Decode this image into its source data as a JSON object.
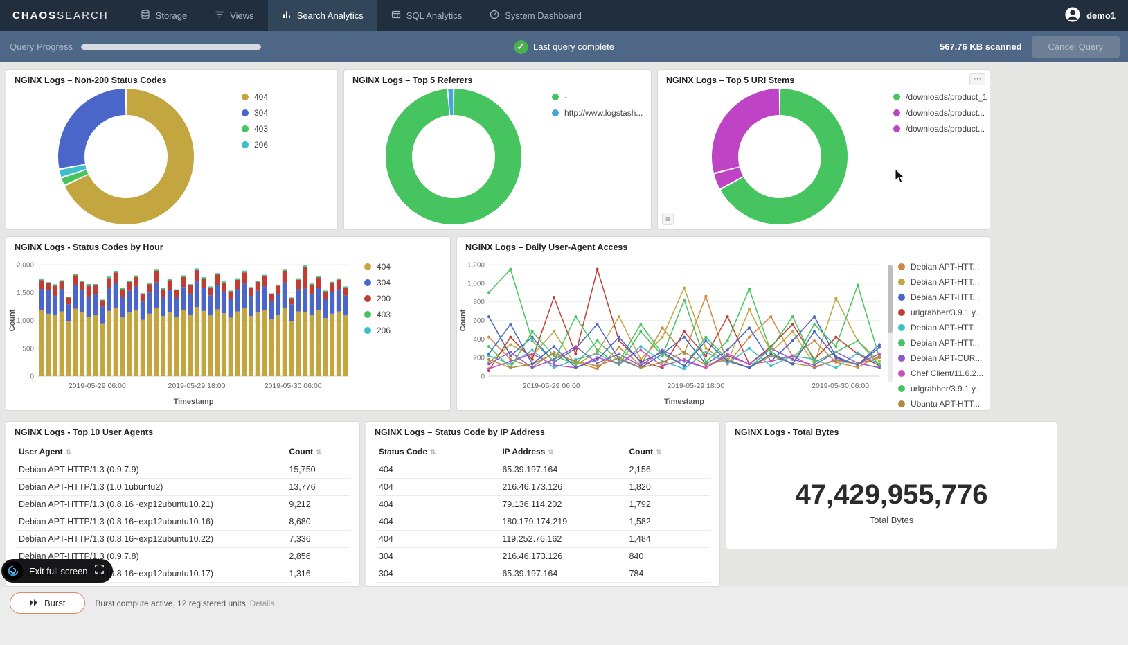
{
  "nav": {
    "logo_chaos": "CHAOS",
    "logo_search": "SEARCH",
    "items": [
      {
        "label": "Storage"
      },
      {
        "label": "Views"
      },
      {
        "label": "Search Analytics"
      },
      {
        "label": "SQL Analytics"
      },
      {
        "label": "System Dashboard"
      }
    ],
    "user": "demo1"
  },
  "query_bar": {
    "label": "Query Progress",
    "progress_percent": 100,
    "status": "Last query complete",
    "scanned": "567.76 KB scanned",
    "cancel_label": "Cancel Query"
  },
  "panels": {
    "non200": {
      "title": "NGINX Logs – Non-200 Status Codes",
      "chart": {
        "type": "pie",
        "slices": [
          {
            "label": "404",
            "value": 68,
            "color": "#c3a63f"
          },
          {
            "label": "403",
            "value": 2,
            "color": "#45c45f"
          },
          {
            "label": "206",
            "value": 2,
            "color": "#3dbec8"
          },
          {
            "label": "304",
            "value": 28,
            "color": "#4966c8"
          }
        ],
        "legend": [
          {
            "label": "404",
            "color": "#c3a63f"
          },
          {
            "label": "304",
            "color": "#4966c8"
          },
          {
            "label": "403",
            "color": "#45c45f"
          },
          {
            "label": "206",
            "color": "#3dbec8"
          }
        ]
      }
    },
    "referers": {
      "title": "NGINX Logs – Top 5 Referers",
      "chart": {
        "type": "pie",
        "slices": [
          {
            "label": "-",
            "value": 98.6,
            "color": "#45c45f"
          },
          {
            "label": "http://www.logstash...",
            "value": 1.4,
            "color": "#46a5d8"
          }
        ],
        "legend": [
          {
            "label": "-",
            "color": "#45c45f"
          },
          {
            "label": "http://www.logstash...",
            "color": "#46a5d8"
          }
        ]
      }
    },
    "uri_stems": {
      "title": "NGINX Logs – Top 5 URI Stems",
      "chart": {
        "type": "pie",
        "slices": [
          {
            "label": "/downloads/product_1",
            "value": 67,
            "color": "#45c45f"
          },
          {
            "label": "/downloads/product...",
            "value": 4,
            "color": "#bf44c5"
          },
          {
            "label": "/downloads/product...",
            "value": 29,
            "color": "#bf44c5"
          }
        ],
        "legend": [
          {
            "label": "/downloads/product_1",
            "color": "#45c45f"
          },
          {
            "label": "/downloads/product...",
            "color": "#bf44c5"
          },
          {
            "label": "/downloads/product...",
            "color": "#bf44c5"
          }
        ]
      }
    },
    "status_by_hour": {
      "title": "NGINX Logs - Status Codes by Hour",
      "chart": {
        "type": "bar",
        "stacked": true,
        "ylabel": "Count",
        "xlabel": "Timestamp",
        "ylim": [
          0,
          2000
        ],
        "yticks": [
          {
            "v": 0,
            "label": "0"
          },
          {
            "v": 500,
            "label": "500"
          },
          {
            "v": 1000,
            "label": "1,000"
          },
          {
            "v": 1500,
            "label": "1,500"
          },
          {
            "v": 2000,
            "label": "2,000"
          }
        ],
        "xticks": [
          {
            "pos": 0.19,
            "label": "2019-05-29 06:00"
          },
          {
            "pos": 0.51,
            "label": "2019-05-29 18:00"
          },
          {
            "pos": 0.82,
            "label": "2019-05-30 06:00"
          }
        ],
        "series": [
          {
            "name": "404",
            "color": "#c3a63f",
            "values": [
              1180,
              1120,
              1090,
              1160,
              980,
              1210,
              1150,
              1060,
              1100,
              950,
              1170,
              1230,
              1060,
              1140,
              1190,
              1010,
              1120,
              1230,
              1080,
              1150,
              1060,
              1180,
              1100,
              1240,
              1170,
              1090,
              1200,
              1130,
              1050,
              1160,
              1220,
              1080,
              1140,
              1190,
              1020,
              1100,
              1230,
              980,
              1160,
              1150,
              1100,
              1180,
              1040,
              1120,
              1160,
              1090
            ]
          },
          {
            "name": "304",
            "color": "#4966c8",
            "values": [
              380,
              420,
              350,
              400,
              310,
              430,
              390,
              360,
              370,
              300,
              410,
              440,
              360,
              390,
              420,
              330,
              380,
              450,
              340,
              400,
              350,
              420,
              380,
              460,
              410,
              360,
              430,
              390,
              340,
              400,
              440,
              360,
              390,
              420,
              330,
              370,
              450,
              310,
              400,
              420,
              380,
              410,
              350,
              390,
              400,
              360
            ]
          },
          {
            "name": "200",
            "color": "#bf3e33",
            "values": [
              160,
              130,
              180,
              140,
              120,
              170,
              150,
              200,
              160,
              110,
              180,
              190,
              140,
              160,
              170,
              130,
              150,
              210,
              140,
              170,
              130,
              180,
              150,
              200,
              170,
              140,
              190,
              160,
              130,
              170,
              200,
              140,
              160,
              180,
              120,
              150,
              210,
              110,
              170,
              380,
              160,
              180,
              130,
              160,
              170,
              140
            ]
          },
          {
            "name": "403",
            "color": "#45c45f",
            "values": [
              14,
              10,
              16,
              12,
              8,
              15,
              12,
              18,
              13,
              8,
              15,
              17,
              11,
              13,
              15,
              10,
              12,
              18,
              11,
              15,
              10,
              16,
              12,
              18,
              15,
              11,
              16,
              13,
              10,
              15,
              18,
              11,
              13,
              16,
              9,
              13,
              18,
              8,
              15,
              20,
              13,
              15,
              10,
              13,
              15,
              11
            ]
          },
          {
            "name": "206",
            "color": "#3dbec8",
            "values": [
              10,
              8,
              12,
              9,
              6,
              11,
              9,
              14,
              10,
              6,
              12,
              13,
              8,
              10,
              11,
              7,
              9,
              14,
              8,
              11,
              7,
              12,
              9,
              14,
              11,
              8,
              12,
              10,
              7,
              11,
              14,
              8,
              10,
              12,
              6,
              9,
              14,
              6,
              11,
              16,
              9,
              11,
              7,
              10,
              11,
              8
            ]
          }
        ],
        "legend": [
          {
            "label": "404",
            "color": "#c3a63f"
          },
          {
            "label": "304",
            "color": "#4966c8"
          },
          {
            "label": "200",
            "color": "#bf3e33"
          },
          {
            "label": "403",
            "color": "#45c45f"
          },
          {
            "label": "206",
            "color": "#3dbec8"
          }
        ]
      }
    },
    "user_agent_access": {
      "title": "NGINX Logs – Daily User-Agent Access",
      "chart": {
        "type": "line",
        "ylabel": "Count",
        "xlabel": "Timestamp",
        "ylim": [
          0,
          1200
        ],
        "yticks": [
          {
            "v": 0,
            "label": "0"
          },
          {
            "v": 200,
            "label": "200"
          },
          {
            "v": 400,
            "label": "400"
          },
          {
            "v": 600,
            "label": "600"
          },
          {
            "v": 800,
            "label": "800"
          },
          {
            "v": 1000,
            "label": "1,000"
          },
          {
            "v": 1200,
            "label": "1,200"
          }
        ],
        "xticks": [
          {
            "pos": 0.16,
            "label": "2019-05-29 06:00"
          },
          {
            "pos": 0.53,
            "label": "2019-05-29 18:00"
          },
          {
            "pos": 0.9,
            "label": "2019-05-30 06:00"
          }
        ],
        "series": [
          {
            "name": "Debian APT-HTT...",
            "color": "#d2863f",
            "values": [
              420,
              180,
              95,
              260,
              150,
              80,
              310,
              120,
              520,
              240,
              860,
              130,
              420,
              640,
              210,
              380,
              150,
              95,
              220
            ]
          },
          {
            "name": "Debian APT-HTT...",
            "color": "#c3a63f",
            "values": [
              150,
              340,
              220,
              480,
              120,
              260,
              640,
              180,
              420,
              950,
              300,
              150,
              720,
              260,
              480,
              130,
              840,
              380,
              160
            ]
          },
          {
            "name": "Debian APT-HTT...",
            "color": "#4966c8",
            "values": [
              640,
              220,
              420,
              150,
              300,
              560,
              180,
              90,
              240,
              420,
              130,
              280,
              520,
              160,
              380,
              640,
              210,
              120,
              340
            ]
          },
          {
            "name": "urlgrabber/3.9.1 y...",
            "color": "#bf3e33",
            "values": [
              60,
              420,
              180,
              850,
              240,
              1150,
              380,
              160,
              90,
              480,
              220,
              640,
              130,
              320,
              560,
              180,
              420,
              240,
              110
            ]
          },
          {
            "name": "Debian APT-HTT...",
            "color": "#3dbec8",
            "values": [
              220,
              130,
              280,
              90,
              180,
              240,
              120,
              320,
              160,
              80,
              260,
              140,
              300,
              110,
              220,
              180,
              90,
              250,
              130
            ]
          },
          {
            "name": "Debian APT-HTT...",
            "color": "#45c45f",
            "values": [
              900,
              1150,
              380,
              160,
              640,
              280,
              120,
              480,
              220,
              820,
              150,
              380,
              940,
              260,
              130,
              560,
              320,
              980,
              200
            ]
          },
          {
            "name": "Debian APT-CUR...",
            "color": "#9258c8",
            "values": [
              130,
              260,
              90,
              180,
              320,
              140,
              240,
              110,
              280,
              160,
              90,
              220,
              130,
              300,
              180,
              120,
              260,
              140,
              90
            ]
          },
          {
            "name": "Chef Client/11.6.2...",
            "color": "#cc4fc0",
            "values": [
              80,
              160,
              240,
              120,
              90,
              200,
              140,
              280,
              110,
              180,
              90,
              240,
              130,
              160,
              220,
              90,
              180,
              130,
              240
            ]
          },
          {
            "name": "urlgrabber/3.9.1 y...",
            "color": "#45c45f",
            "values": [
              320,
              90,
              480,
              220,
              130,
              380,
              160,
              560,
              240,
              110,
              420,
              180,
              90,
              300,
              640,
              150,
              260,
              380,
              120
            ]
          },
          {
            "name": "Ubuntu APT-HTT...",
            "color": "#b08c3e",
            "values": [
              180,
              90,
              130,
              240,
              160,
              110,
              200,
              90,
              150,
              260,
              120,
              180,
              90,
              220,
              140,
              100,
              170,
              130,
              200
            ]
          },
          {
            "name": "Debian APT-HTT...",
            "color": "#4966c8",
            "values": [
              240,
              560,
              130,
              320,
              90,
              180,
              420,
              150,
              260,
              110,
              380,
              160,
              90,
              240,
              130,
              480,
              200,
              120,
              310
            ]
          }
        ],
        "legend": [
          {
            "label": "Debian APT-HTT...",
            "color": "#d2863f"
          },
          {
            "label": "Debian APT-HTT...",
            "color": "#c3a63f"
          },
          {
            "label": "Debian APT-HTT...",
            "color": "#4966c8"
          },
          {
            "label": "urlgrabber/3.9.1 y...",
            "color": "#bf3e33"
          },
          {
            "label": "Debian APT-HTT...",
            "color": "#3dbec8"
          },
          {
            "label": "Debian APT-HTT...",
            "color": "#45c45f"
          },
          {
            "label": "Debian APT-CUR...",
            "color": "#9258c8"
          },
          {
            "label": "Chef Client/11.6.2...",
            "color": "#cc4fc0"
          },
          {
            "label": "urlgrabber/3.9.1 y...",
            "color": "#45c45f"
          },
          {
            "label": "Ubuntu APT-HTT...",
            "color": "#b08c3e"
          },
          {
            "label": "Debian APT-HTT...",
            "color": "#4966c8"
          }
        ]
      }
    },
    "top_user_agents": {
      "title": "NGINX Logs - Top 10 User Agents",
      "table": {
        "columns": [
          "User Agent",
          "Count"
        ],
        "rows": [
          [
            "Debian APT-HTTP/1.3 (0.9.7.9)",
            "15,750"
          ],
          [
            "Debian APT-HTTP/1.3 (1.0.1ubuntu2)",
            "13,776"
          ],
          [
            "Debian APT-HTTP/1.3 (0.8.16~exp12ubuntu10.21)",
            "9,212"
          ],
          [
            "Debian APT-HTTP/1.3 (0.8.16~exp12ubuntu10.16)",
            "8,680"
          ],
          [
            "Debian APT-HTTP/1.3 (0.8.16~exp12ubuntu10.22)",
            "7,336"
          ],
          [
            "Debian APT-HTTP/1.3 (0.9.7.8)",
            "2,856"
          ],
          [
            "Debian APT-HTTP/1.3 (0.8.16~exp12ubuntu10.17)",
            "1,316"
          ]
        ]
      }
    },
    "status_by_ip": {
      "title": "NGINX Logs – Status Code by IP Address",
      "table": {
        "columns": [
          "Status Code",
          "IP Address",
          "Count"
        ],
        "rows": [
          [
            "404",
            "65.39.197.164",
            "2,156"
          ],
          [
            "404",
            "216.46.173.126",
            "1,820"
          ],
          [
            "404",
            "79.136.114.202",
            "1,792"
          ],
          [
            "404",
            "180.179.174.219",
            "1,582"
          ],
          [
            "404",
            "119.252.76.162",
            "1,484"
          ],
          [
            "304",
            "216.46.173.126",
            "840"
          ],
          [
            "304",
            "65.39.197.164",
            "784"
          ]
        ]
      }
    },
    "total_bytes": {
      "title": "NGINX Logs - Total Bytes",
      "value": "47,429,955,776",
      "label": "Total Bytes"
    }
  },
  "overlay": {
    "exit_label": "Exit full screen"
  },
  "footer": {
    "burst_label": "Burst",
    "status_text": "Burst compute active, 12 registered units",
    "details_label": "Details"
  }
}
